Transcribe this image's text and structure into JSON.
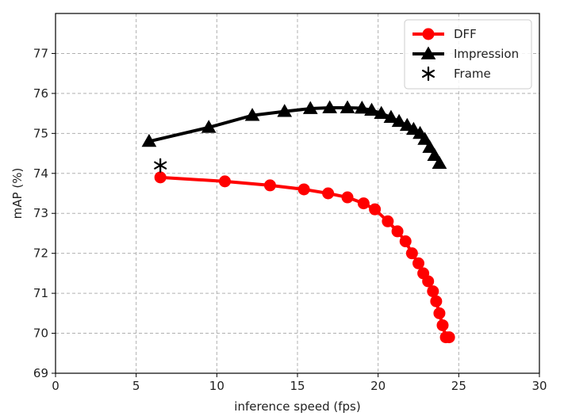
{
  "chart_data": {
    "type": "line",
    "xlabel": "inference speed (fps)",
    "ylabel": "mAP (%)",
    "xlim": [
      0,
      30
    ],
    "ylim": [
      69,
      78
    ],
    "xticks": [
      0,
      5,
      10,
      15,
      20,
      25,
      30
    ],
    "yticks": [
      69,
      70,
      71,
      72,
      73,
      74,
      75,
      76,
      77
    ],
    "grid": true,
    "legend_position": "top-right",
    "series": [
      {
        "name": "DFF",
        "color": "#ff0000",
        "marker": "circle",
        "x": [
          6.5,
          10.5,
          13.3,
          15.4,
          16.9,
          18.1,
          19.1,
          19.8,
          20.6,
          21.2,
          21.7,
          22.1,
          22.5,
          22.8,
          23.1,
          23.4,
          23.6,
          23.8,
          24.0,
          24.2,
          24.4
        ],
        "y": [
          73.9,
          73.8,
          73.7,
          73.6,
          73.5,
          73.4,
          73.25,
          73.1,
          72.8,
          72.55,
          72.3,
          72.0,
          71.75,
          71.5,
          71.3,
          71.05,
          70.8,
          70.5,
          70.2,
          69.9,
          69.9
        ]
      },
      {
        "name": "Impression",
        "color": "#000000",
        "marker": "triangle",
        "x": [
          5.8,
          9.5,
          12.2,
          14.2,
          15.8,
          17.0,
          18.1,
          19.0,
          19.6,
          20.2,
          20.8,
          21.3,
          21.8,
          22.2,
          22.6,
          22.9,
          23.2,
          23.5,
          23.8
        ],
        "y": [
          74.8,
          75.15,
          75.45,
          75.55,
          75.62,
          75.64,
          75.64,
          75.63,
          75.58,
          75.5,
          75.4,
          75.3,
          75.2,
          75.1,
          75.0,
          74.85,
          74.65,
          74.45,
          74.25
        ]
      },
      {
        "name": "Frame",
        "color": "#000000",
        "marker": "asterisk",
        "x": [
          6.5
        ],
        "y": [
          74.2
        ]
      }
    ]
  }
}
